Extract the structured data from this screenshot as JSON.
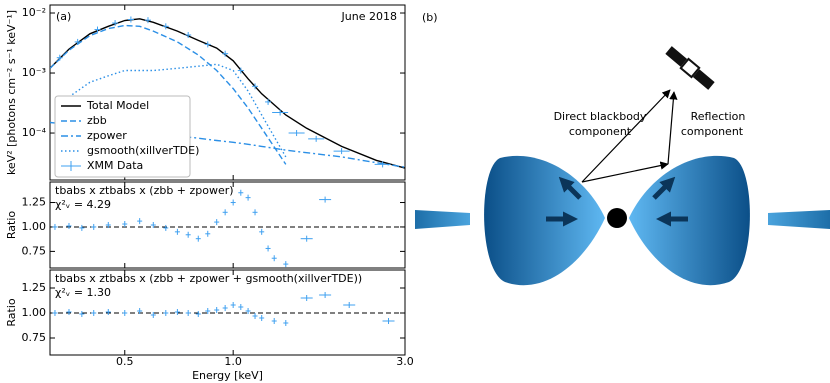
{
  "chart_data": [
    {
      "type": "line",
      "label": "(a)",
      "annotation": "June 2018",
      "ylabel": "keV² [photons cm⁻² s⁻¹ keV⁻¹]",
      "xlog": true,
      "ylog": true,
      "xlim": [
        0.31,
        3.0
      ],
      "ylim": [
        1.65e-05,
        0.0136
      ],
      "yticks": [
        {
          "value": 0.0001,
          "label": "10⁻⁴"
        },
        {
          "value": 0.001,
          "label": "10⁻³"
        },
        {
          "value": 0.01,
          "label": "10⁻²"
        }
      ],
      "legend": "lower left",
      "x": [
        0.31,
        0.35,
        0.4,
        0.45,
        0.5,
        0.55,
        0.6,
        0.7,
        0.8,
        0.9,
        1.0,
        1.1,
        1.2,
        1.4,
        1.6,
        2.0,
        2.5,
        3.0
      ],
      "series": [
        {
          "name": "Total Model",
          "color": "#000000",
          "style": "solid",
          "values": [
            0.0012,
            0.0025,
            0.0045,
            0.006,
            0.0075,
            0.008,
            0.007,
            0.005,
            0.0035,
            0.0026,
            0.0016,
            0.0008,
            0.00045,
            0.0002,
            0.00012,
            6e-05,
            3.5e-05,
            2.6e-05
          ]
        },
        {
          "name": "zbb",
          "color": "#2b8fe6",
          "style": "dashed",
          "values": [
            0.0012,
            0.0024,
            0.0042,
            0.0055,
            0.0062,
            0.006,
            0.005,
            0.0033,
            0.002,
            0.0011,
            0.00055,
            0.00026,
            0.00012,
            3e-05,
            null,
            null,
            null,
            null
          ]
        },
        {
          "name": "zpower",
          "color": "#2b8fe6",
          "style": "dashdot",
          "values": [
            0.00015,
            0.00014,
            0.00013,
            0.00012,
            0.00011,
            0.000105,
            0.0001,
            9e-05,
            8.2e-05,
            7.5e-05,
            7e-05,
            6.5e-05,
            6e-05,
            5.2e-05,
            4.7e-05,
            4e-05,
            3.2e-05,
            2.7e-05
          ]
        },
        {
          "name": "gsmooth(xillverTDE)",
          "color": "#2b8fe6",
          "style": "dotted",
          "values": [
            null,
            0.0004,
            0.0007,
            0.0009,
            0.0011,
            0.0011,
            0.0011,
            0.0012,
            0.0013,
            0.0014,
            0.0011,
            0.0005,
            0.0002,
            4e-05,
            null,
            null,
            null,
            null
          ]
        },
        {
          "name": "XMM Data",
          "color": "#3fa0f0",
          "style": "cross",
          "x": [
            0.33,
            0.37,
            0.42,
            0.47,
            0.52,
            0.58,
            0.65,
            0.75,
            0.85,
            0.95,
            1.05,
            1.15,
            1.25,
            1.35,
            1.5,
            1.7,
            2.0,
            2.6
          ],
          "values": [
            0.0018,
            0.0033,
            0.0053,
            0.0068,
            0.0078,
            0.0076,
            0.006,
            0.0043,
            0.003,
            0.0021,
            0.0011,
            0.0006,
            0.00033,
            0.00022,
            0.0001,
            8e-05,
            5e-05,
            3e-05
          ]
        }
      ]
    },
    {
      "type": "scatter",
      "ylabel": "Ratio",
      "model": "tbabs x ztbabs x (zbb + zpower)",
      "stat": "χ²ᵥ = 4.29",
      "xlog": true,
      "xlim": [
        0.31,
        3.0
      ],
      "ylim": [
        0.58,
        1.46
      ],
      "yticks": [
        0.75,
        {
          "value": 1,
          "label": "1.00"
        },
        1.25
      ],
      "hline": 1,
      "color": "#3fa0f0",
      "x": [
        0.32,
        0.35,
        0.38,
        0.41,
        0.45,
        0.5,
        0.55,
        0.6,
        0.65,
        0.7,
        0.75,
        0.8,
        0.85,
        0.9,
        0.95,
        1.0,
        1.05,
        1.1,
        1.15,
        1.2,
        1.25,
        1.3,
        1.4,
        1.6,
        1.8
      ],
      "values": [
        1.0,
        1.01,
        0.99,
        1.0,
        1.02,
        1.03,
        1.06,
        1.02,
        0.99,
        0.95,
        0.92,
        0.88,
        0.93,
        1.05,
        1.15,
        1.25,
        1.35,
        1.3,
        1.15,
        0.95,
        0.78,
        0.68,
        0.62,
        0.88,
        1.28
      ]
    },
    {
      "type": "scatter",
      "ylabel": "Ratio",
      "model": "tbabs x ztbabs x (zbb + zpower + gsmooth(xillverTDE))",
      "stat": "χ²ᵥ = 1.30",
      "xlog": true,
      "xlim": [
        0.31,
        3.0
      ],
      "ylim": [
        0.58,
        1.43
      ],
      "yticks": [
        0.75,
        {
          "value": 1,
          "label": "1.00"
        },
        1.25
      ],
      "hline": 1,
      "color": "#3fa0f0",
      "xticks": [
        0.5,
        {
          "value": 1,
          "label": "1.0"
        },
        {
          "value": 3,
          "label": "3.0"
        }
      ],
      "xlabel": "Energy [keV]",
      "x": [
        0.32,
        0.35,
        0.38,
        0.41,
        0.45,
        0.5,
        0.55,
        0.6,
        0.65,
        0.7,
        0.75,
        0.8,
        0.85,
        0.9,
        0.95,
        1.0,
        1.05,
        1.1,
        1.15,
        1.2,
        1.3,
        1.4,
        1.6,
        1.8,
        2.1,
        2.7
      ],
      "values": [
        1.0,
        1.01,
        0.99,
        1.0,
        1.01,
        1.0,
        1.02,
        0.98,
        1.0,
        1.01,
        1.0,
        0.99,
        1.02,
        1.03,
        1.05,
        1.08,
        1.06,
        1.02,
        0.97,
        0.95,
        0.92,
        0.9,
        1.15,
        1.18,
        1.08,
        0.92
      ]
    }
  ],
  "diagram": {
    "label": "(b)",
    "direct": [
      "Direct blackbody",
      "component"
    ],
    "reflection": [
      "Reflection",
      "component"
    ]
  }
}
